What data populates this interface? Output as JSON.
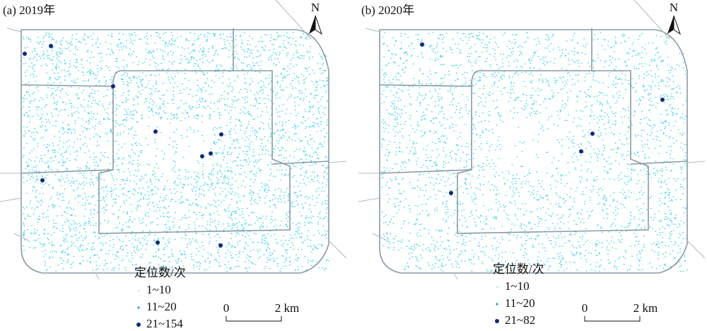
{
  "panels": [
    {
      "title": "(a) 2019年",
      "north": "N",
      "legend": {
        "title": "定位数/次",
        "items": [
          "1~10",
          "11~20",
          "21~154"
        ]
      },
      "scale": {
        "start": "0",
        "end": "2 km"
      }
    },
    {
      "title": "(b) 2020年",
      "north": "N",
      "legend": {
        "title": "定位数/次",
        "items": [
          "1~10",
          "11~20",
          "21~82"
        ]
      },
      "scale": {
        "start": "0",
        "end": "2 km"
      }
    }
  ]
}
